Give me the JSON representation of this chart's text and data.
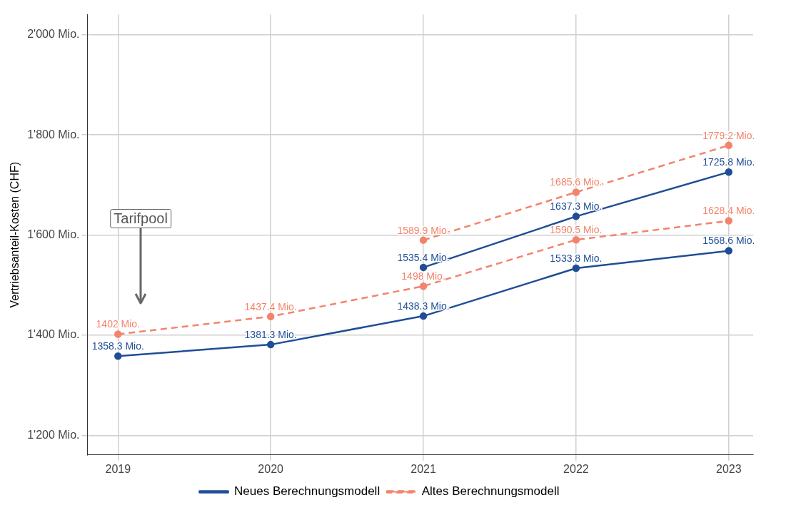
{
  "chart_data": {
    "type": "line",
    "ylabel": "Vertriebsanteil-Kosten (CHF)",
    "x": [
      2019,
      2020,
      2021,
      2022,
      2023
    ],
    "xlim": [
      2018.8,
      2023.16
    ],
    "xticks": [
      2019,
      2020,
      2021,
      2022,
      2023
    ],
    "ylim": [
      1161,
      2040
    ],
    "yticks": [
      {
        "value": 1200,
        "label": "1'200 Mio."
      },
      {
        "value": 1400,
        "label": "1'400 Mio."
      },
      {
        "value": 1600,
        "label": "1'600 Mio."
      },
      {
        "value": 1800,
        "label": "1'800 Mio."
      },
      {
        "value": 2000,
        "label": "2'000 Mio."
      }
    ],
    "grid": true,
    "legend": "bottom",
    "marker": "circle",
    "series": [
      {
        "name": "Neues Berechnungsmodell",
        "color": "#1f4e96",
        "line_style": "solid",
        "values": [
          1358.3,
          1381.3,
          1438.3,
          1533.8,
          1568.6
        ],
        "value_labels": [
          "1358.3 Mio.",
          "1381.3 Mio.",
          "1438.3 Mio.",
          "1533.8 Mio.",
          "1568.6 Mio."
        ]
      },
      {
        "color": "#1f4e96",
        "line_style": "solid",
        "values": [
          null,
          null,
          1535.4,
          1637.3,
          1725.8
        ],
        "value_labels": [
          null,
          null,
          "1535.4 Mio.",
          "1637.3 Mio.",
          "1725.8 Mio."
        ]
      },
      {
        "name": "Altes Berechnungsmodell",
        "color": "#f4836c",
        "line_style": "dashed",
        "values": [
          1402,
          1437.4,
          1498,
          1590.5,
          1628.4
        ],
        "value_labels": [
          "1402 Mio.",
          "1437.4 Mio.",
          "1498 Mio.",
          "1590.5 Mio.",
          "1628.4 Mio."
        ]
      },
      {
        "color": "#f4836c",
        "line_style": "dashed",
        "values": [
          null,
          null,
          1589.9,
          1685.6,
          1779.2
        ],
        "value_labels": [
          null,
          null,
          "1589.9 Mio.",
          "1685.6 Mio.",
          "1779.2 Mio."
        ]
      }
    ],
    "annotations": [
      "Tarifpool"
    ]
  }
}
